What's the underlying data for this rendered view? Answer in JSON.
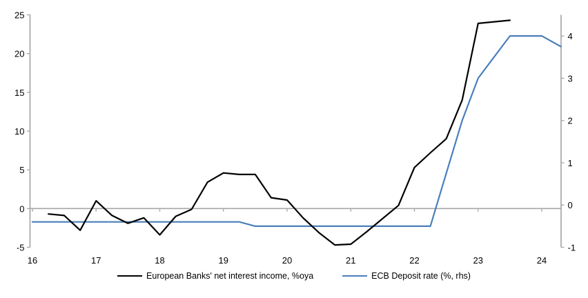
{
  "chart_data": {
    "type": "line",
    "title": "",
    "x_axis": {
      "ticks": [
        16,
        17,
        18,
        19,
        20,
        21,
        22,
        23,
        24
      ],
      "range": [
        16,
        24.3
      ],
      "label_position": "low"
    },
    "y_axis_left": {
      "ticks": [
        25,
        20,
        15,
        10,
        5,
        0,
        -5
      ],
      "range": [
        -5,
        25
      ]
    },
    "y_axis_right": {
      "ticks": [
        4,
        3,
        2,
        1,
        0,
        -1
      ],
      "range": [
        -1,
        4.5
      ]
    },
    "grid": "zero-line-only",
    "legend_position": "bottom-center",
    "series": [
      {
        "name": "European Banks' net interest income, %oya",
        "color": "#000000",
        "axis": "left",
        "x": [
          16.25,
          16.5,
          16.75,
          17.0,
          17.25,
          17.5,
          17.75,
          18.0,
          18.25,
          18.5,
          18.75,
          19.0,
          19.25,
          19.5,
          19.75,
          20.0,
          20.25,
          20.5,
          20.75,
          21.0,
          21.25,
          21.5,
          21.75,
          22.0,
          22.25,
          22.5,
          22.75,
          23.0,
          23.25,
          23.5
        ],
        "y": [
          -0.7,
          -0.9,
          -2.8,
          1.0,
          -0.9,
          -1.9,
          -1.2,
          -3.4,
          -1.0,
          -0.1,
          3.4,
          4.6,
          4.4,
          4.4,
          1.4,
          1.1,
          -1.2,
          -3.1,
          -4.7,
          -4.6,
          -3.0,
          -1.3,
          0.4,
          5.3,
          7.2,
          9.0,
          14.0,
          23.9,
          24.1,
          24.3
        ]
      },
      {
        "name": "ECB Deposit rate (%, rhs)",
        "color": "#4a7ebb",
        "axis": "right",
        "x": [
          16.0,
          19.25,
          19.5,
          22.25,
          22.5,
          22.75,
          23.0,
          23.25,
          23.5,
          24.0,
          24.3
        ],
        "y": [
          -0.4,
          -0.4,
          -0.5,
          -0.5,
          0.75,
          2.0,
          3.0,
          3.5,
          4.0,
          4.0,
          3.75
        ]
      }
    ],
    "axis_color": "#a6a6a6"
  }
}
